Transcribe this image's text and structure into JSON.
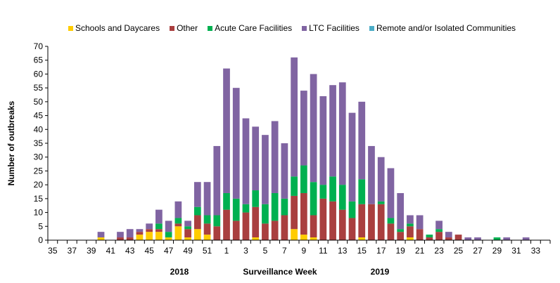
{
  "chart_data": {
    "type": "bar",
    "stacked": true,
    "xlabel": "Surveillance Week",
    "ylabel": "Number of outbreaks",
    "ylim": [
      0,
      70
    ],
    "yticks": [
      0,
      5,
      10,
      15,
      20,
      25,
      30,
      35,
      40,
      45,
      50,
      55,
      60,
      65,
      70
    ],
    "year_labels": [
      "2018",
      "2019"
    ],
    "categories": [
      "35",
      "36",
      "37",
      "38",
      "39",
      "40",
      "41",
      "42",
      "43",
      "44",
      "45",
      "46",
      "47",
      "48",
      "49",
      "50",
      "51",
      "52",
      "1",
      "2",
      "3",
      "4",
      "5",
      "6",
      "7",
      "8",
      "9",
      "10",
      "11",
      "12",
      "13",
      "14",
      "15",
      "16",
      "17",
      "18",
      "19",
      "20",
      "21",
      "22",
      "23",
      "24",
      "25",
      "26",
      "27",
      "28",
      "29",
      "30",
      "31",
      "32",
      "33",
      "34"
    ],
    "tick_labels": [
      "35",
      "37",
      "39",
      "41",
      "43",
      "45",
      "47",
      "49",
      "51",
      "1",
      "3",
      "5",
      "7",
      "9",
      "11",
      "13",
      "15",
      "17",
      "19",
      "21",
      "23",
      "25",
      "27",
      "29",
      "31",
      "33"
    ],
    "legend_position": "top",
    "series": [
      {
        "name": "Schools and Daycares",
        "color": "#FFCC00",
        "values": [
          0,
          0,
          0,
          0,
          0,
          1,
          0,
          0,
          0,
          2,
          3,
          3,
          1,
          5,
          1,
          4,
          2,
          0,
          0,
          0,
          0,
          1,
          0,
          0,
          0,
          4,
          2,
          1,
          0,
          0,
          0,
          0,
          1,
          0,
          0,
          0,
          0,
          1,
          0,
          0,
          0,
          0,
          0,
          0,
          0,
          0,
          0,
          0,
          0,
          0,
          0,
          0
        ]
      },
      {
        "name": "Other",
        "color": "#A93F3F",
        "values": [
          0,
          0,
          0,
          0,
          0,
          0,
          0,
          1,
          1,
          1,
          1,
          1,
          0,
          1,
          3,
          5,
          4,
          5,
          11,
          7,
          10,
          11,
          6,
          7,
          9,
          12,
          15,
          8,
          15,
          14,
          11,
          8,
          12,
          13,
          13,
          6,
          3,
          4,
          4,
          1,
          3,
          1,
          2,
          0,
          0,
          0,
          0,
          0,
          0,
          0,
          0,
          0
        ]
      },
      {
        "name": "Acute Care Facilities",
        "color": "#00B050",
        "values": [
          0,
          0,
          0,
          0,
          0,
          0,
          0,
          0,
          0,
          0,
          0,
          2,
          2,
          2,
          1,
          3,
          3,
          4,
          6,
          8,
          3,
          6,
          7,
          10,
          6,
          7,
          10,
          12,
          5,
          9,
          9,
          6,
          9,
          0,
          1,
          2,
          1,
          1,
          0,
          1,
          1,
          0,
          0,
          0,
          0,
          0,
          1,
          0,
          0,
          0,
          0,
          0
        ]
      },
      {
        "name": "LTC Facilities",
        "color": "#8064A2",
        "values": [
          0,
          0,
          0,
          0,
          0,
          2,
          0,
          2,
          3,
          1,
          2,
          5,
          4,
          6,
          2,
          9,
          12,
          25,
          45,
          40,
          31,
          23,
          25,
          26,
          20,
          43,
          27,
          39,
          32,
          33,
          37,
          32,
          28,
          21,
          16,
          18,
          13,
          3,
          5,
          0,
          3,
          2,
          0,
          1,
          1,
          0,
          0,
          1,
          0,
          1,
          0,
          0
        ]
      },
      {
        "name": "Remote and/or Isolated Communities",
        "color": "#4BACC6",
        "values": [
          0,
          0,
          0,
          0,
          0,
          0,
          0,
          0,
          0,
          0,
          0,
          0,
          0,
          0,
          0,
          0,
          0,
          0,
          0,
          0,
          0,
          0,
          0,
          0,
          0,
          0,
          0,
          0,
          0,
          0,
          0,
          0,
          0,
          0,
          0,
          0,
          0,
          0,
          0,
          0,
          0,
          0,
          0,
          0,
          0,
          0,
          0,
          0,
          0,
          0,
          0,
          0
        ]
      }
    ]
  }
}
